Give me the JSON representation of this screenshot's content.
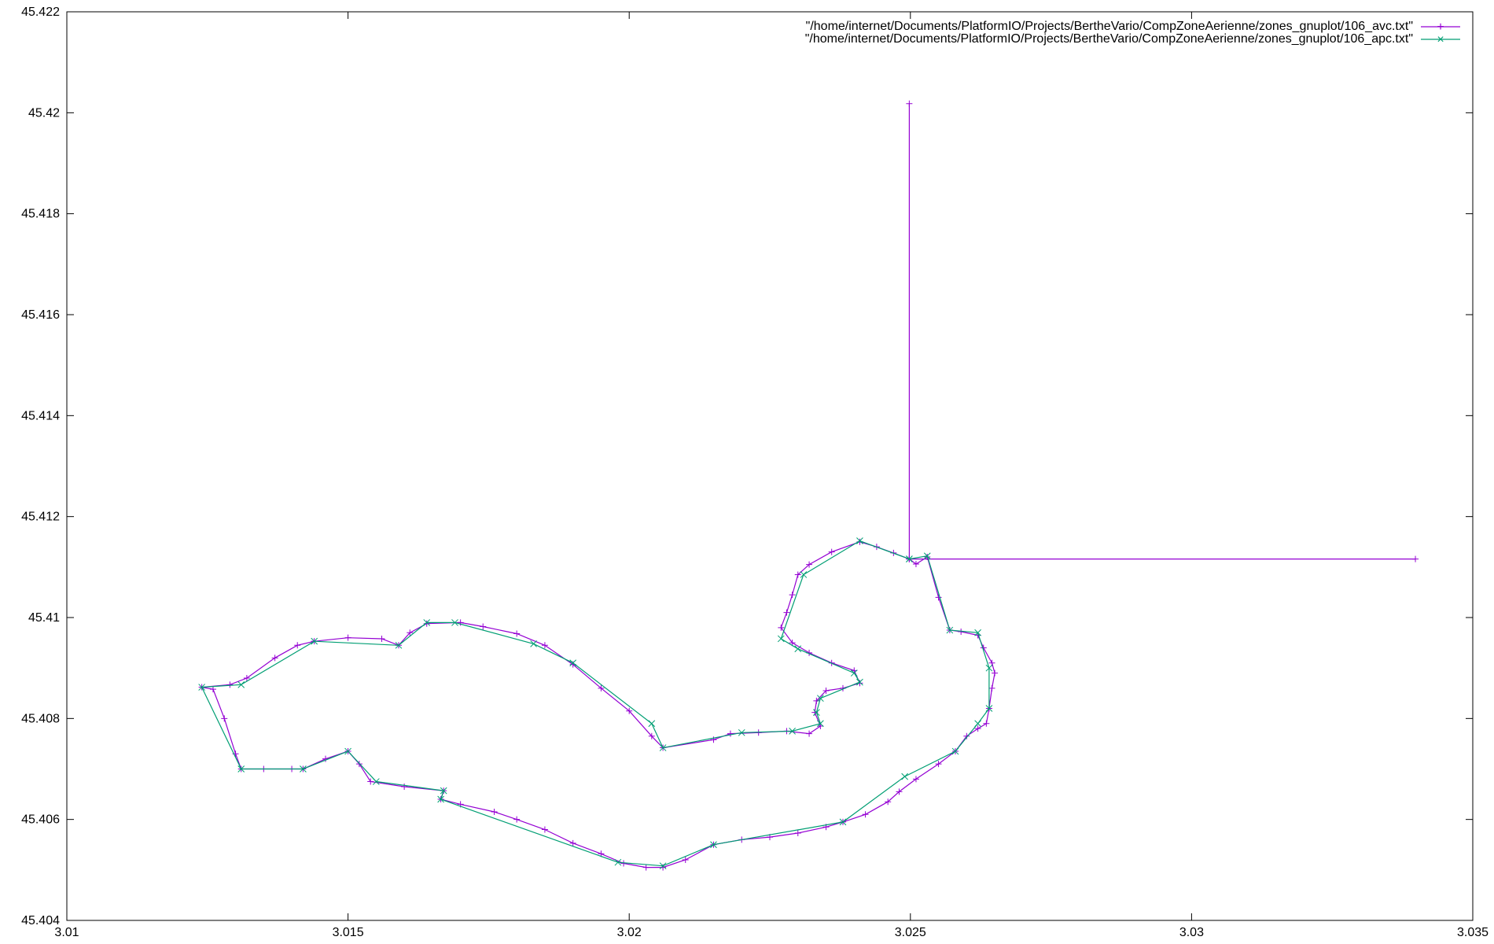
{
  "chart_data": {
    "type": "line",
    "title": "",
    "xlabel": "",
    "ylabel": "",
    "xlim": [
      3.01,
      3.035
    ],
    "ylim": [
      45.404,
      45.422
    ],
    "grid": false,
    "legend_position": "top-right",
    "xticks": [
      "3.01",
      "3.015",
      "3.02",
      "3.025",
      "3.03",
      "3.035"
    ],
    "yticks": [
      "45.404",
      "45.406",
      "45.408",
      "45.41",
      "45.412",
      "45.414",
      "45.416",
      "45.418",
      "45.42",
      "45.422"
    ],
    "series": [
      {
        "name": "\"/home/internet/Documents/PlatformIO/Projects/BertheVario/CompZoneAerienne/zones_gnuplot/106_avc.txt\"",
        "color": "#9400d3",
        "marker": "+",
        "points": [
          [
            3.02498,
            45.42018
          ],
          [
            3.02498,
            45.41116
          ],
          [
            3.03398,
            45.41116
          ],
          [
            3.02498,
            45.41116
          ],
          [
            3.0247,
            45.41128
          ],
          [
            3.0244,
            45.4114
          ],
          [
            3.0241,
            45.4115
          ],
          [
            3.0236,
            45.4113
          ],
          [
            3.0232,
            45.41105
          ],
          [
            3.023,
            45.41085
          ],
          [
            3.0229,
            45.41045
          ],
          [
            3.0228,
            45.4101
          ],
          [
            3.0227,
            45.4098
          ],
          [
            3.0229,
            45.4095
          ],
          [
            3.0232,
            45.4093
          ],
          [
            3.0236,
            45.4091
          ],
          [
            3.024,
            45.40895
          ],
          [
            3.0241,
            45.4087
          ],
          [
            3.0238,
            45.4086
          ],
          [
            3.0235,
            45.40855
          ],
          [
            3.02333,
            45.40835
          ],
          [
            3.0233,
            45.40812
          ],
          [
            3.0234,
            45.40785
          ],
          [
            3.0232,
            45.4077
          ],
          [
            3.0228,
            45.40775
          ],
          [
            3.0223,
            45.40772
          ],
          [
            3.0218,
            45.4077
          ],
          [
            3.0215,
            45.40758
          ],
          [
            3.0206,
            45.40742
          ],
          [
            3.0204,
            45.40765
          ],
          [
            3.02,
            45.40815
          ],
          [
            3.0195,
            45.4086
          ],
          [
            3.019,
            45.40907
          ],
          [
            3.0185,
            45.40945
          ],
          [
            3.018,
            45.40968
          ],
          [
            3.0174,
            45.40982
          ],
          [
            3.017,
            45.4099
          ],
          [
            3.0164,
            45.40988
          ],
          [
            3.0161,
            45.4097
          ],
          [
            3.0159,
            45.40945
          ],
          [
            3.0156,
            45.40958
          ],
          [
            3.015,
            45.4096
          ],
          [
            3.0144,
            45.40953
          ],
          [
            3.0141,
            45.40945
          ],
          [
            3.0137,
            45.4092
          ],
          [
            3.0132,
            45.4088
          ],
          [
            3.0129,
            45.40867
          ],
          [
            3.0124,
            45.40862
          ],
          [
            3.0126,
            45.40858
          ],
          [
            3.0128,
            45.408
          ],
          [
            3.013,
            45.4073
          ],
          [
            3.0131,
            45.407
          ],
          [
            3.0135,
            45.407
          ],
          [
            3.014,
            45.407
          ],
          [
            3.0142,
            45.407
          ],
          [
            3.0146,
            45.4072
          ],
          [
            3.015,
            45.40735
          ],
          [
            3.0152,
            45.4071
          ],
          [
            3.0154,
            45.40675
          ],
          [
            3.016,
            45.40665
          ],
          [
            3.0167,
            45.40657
          ],
          [
            3.01665,
            45.4064
          ],
          [
            3.017,
            45.4063
          ],
          [
            3.0176,
            45.40615
          ],
          [
            3.018,
            45.406
          ],
          [
            3.0185,
            45.4058
          ],
          [
            3.019,
            45.40553
          ],
          [
            3.0195,
            45.40532
          ],
          [
            3.0199,
            45.40513
          ],
          [
            3.0203,
            45.40505
          ],
          [
            3.0206,
            45.40505
          ],
          [
            3.021,
            45.4052
          ],
          [
            3.0215,
            45.4055
          ],
          [
            3.022,
            45.4056
          ],
          [
            3.0225,
            45.40565
          ],
          [
            3.023,
            45.40573
          ],
          [
            3.0235,
            45.40585
          ],
          [
            3.0238,
            45.40595
          ],
          [
            3.0242,
            45.4061
          ],
          [
            3.0246,
            45.40635
          ],
          [
            3.0248,
            45.40655
          ],
          [
            3.0251,
            45.4068
          ],
          [
            3.0255,
            45.4071
          ],
          [
            3.0258,
            45.40735
          ],
          [
            3.026,
            45.40765
          ],
          [
            3.0262,
            45.4078
          ],
          [
            3.02635,
            45.4079
          ],
          [
            3.0264,
            45.4082
          ],
          [
            3.02645,
            45.4086
          ],
          [
            3.0265,
            45.4089
          ],
          [
            3.02645,
            45.4091
          ],
          [
            3.0263,
            45.4094
          ],
          [
            3.0262,
            45.40965
          ],
          [
            3.0259,
            45.40972
          ],
          [
            3.0257,
            45.40975
          ],
          [
            3.0255,
            45.4104
          ],
          [
            3.0253,
            45.4112
          ],
          [
            3.0251,
            45.41106
          ],
          [
            3.02498,
            45.41116
          ]
        ]
      },
      {
        "name": "\"/home/internet/Documents/PlatformIO/Projects/BertheVario/CompZoneAerienne/zones_gnuplot/106_apc.txt\"",
        "color": "#009e73",
        "marker": "×",
        "points": [
          [
            3.02498,
            45.41116
          ],
          [
            3.0241,
            45.41152
          ],
          [
            3.0231,
            45.41085
          ],
          [
            3.0227,
            45.40958
          ],
          [
            3.023,
            45.40938
          ],
          [
            3.024,
            45.4089
          ],
          [
            3.0241,
            45.40872
          ],
          [
            3.0234,
            45.4084
          ],
          [
            3.02333,
            45.40812
          ],
          [
            3.0234,
            45.4079
          ],
          [
            3.0229,
            45.40775
          ],
          [
            3.022,
            45.40772
          ],
          [
            3.0206,
            45.40742
          ],
          [
            3.0204,
            45.4079
          ],
          [
            3.019,
            45.4091
          ],
          [
            3.0183,
            45.40948
          ],
          [
            3.0169,
            45.4099
          ],
          [
            3.0164,
            45.4099
          ],
          [
            3.0159,
            45.40945
          ],
          [
            3.0144,
            45.40953
          ],
          [
            3.0131,
            45.40867
          ],
          [
            3.0124,
            45.40862
          ],
          [
            3.0131,
            45.407
          ],
          [
            3.0142,
            45.407
          ],
          [
            3.015,
            45.40735
          ],
          [
            3.0155,
            45.40675
          ],
          [
            3.0167,
            45.40657
          ],
          [
            3.01665,
            45.4064
          ],
          [
            3.0198,
            45.40515
          ],
          [
            3.0206,
            45.40508
          ],
          [
            3.0215,
            45.4055
          ],
          [
            3.0238,
            45.40595
          ],
          [
            3.0249,
            45.40685
          ],
          [
            3.0258,
            45.40735
          ],
          [
            3.0262,
            45.4079
          ],
          [
            3.0264,
            45.4082
          ],
          [
            3.0264,
            45.409
          ],
          [
            3.0262,
            45.4097
          ],
          [
            3.0257,
            45.40975
          ],
          [
            3.0253,
            45.41122
          ],
          [
            3.02498,
            45.41116
          ]
        ]
      }
    ]
  }
}
